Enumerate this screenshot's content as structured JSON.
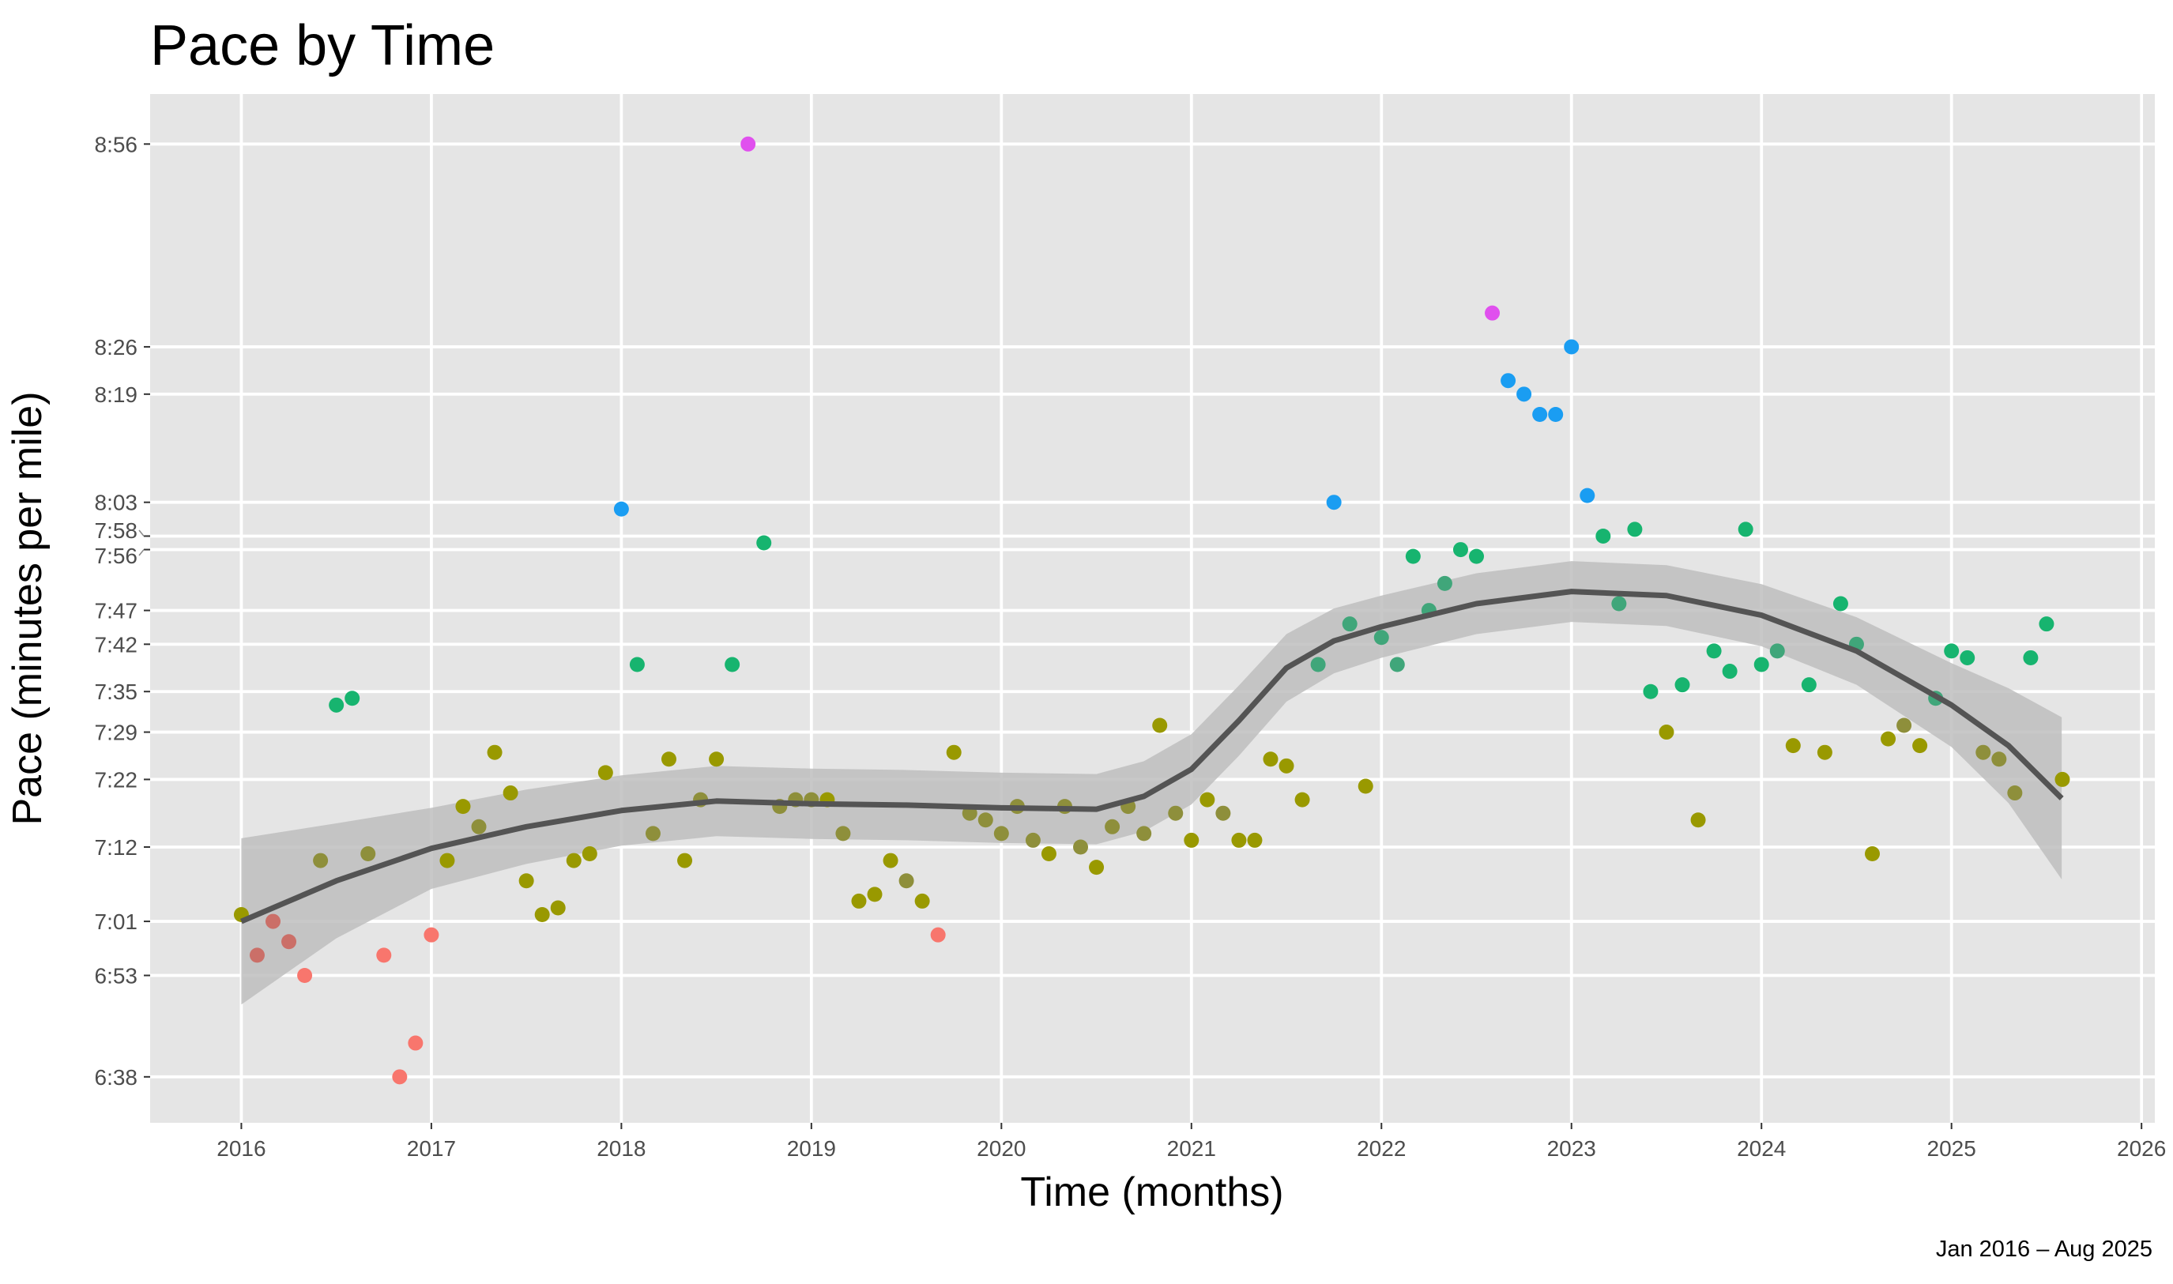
{
  "chart_data": {
    "type": "scatter",
    "title": "Pace by Time",
    "xlabel": "Time (months)",
    "ylabel": "Pace (minutes per mile)",
    "caption": "Jan 2016 – Aug 2025",
    "xlim": [
      2015.52,
      2026.07
    ],
    "ylim_seconds": [
      391.2,
      543.4
    ],
    "grid": true,
    "legend": "none",
    "x_ticks": [
      2016,
      2017,
      2018,
      2019,
      2020,
      2021,
      2022,
      2023,
      2024,
      2025,
      2026
    ],
    "y_ticks": [
      {
        "label": "8:56",
        "seconds": 536
      },
      {
        "label": "8:26",
        "seconds": 506
      },
      {
        "label": "8:19",
        "seconds": 499
      },
      {
        "label": "8:03",
        "seconds": 483
      },
      {
        "label": "7:58",
        "seconds": 478
      },
      {
        "label": "7:56",
        "seconds": 476
      },
      {
        "label": "7:47",
        "seconds": 467
      },
      {
        "label": "7:42",
        "seconds": 462
      },
      {
        "label": "7:35",
        "seconds": 455
      },
      {
        "label": "7:29",
        "seconds": 449
      },
      {
        "label": "7:22",
        "seconds": 442
      },
      {
        "label": "7:12",
        "seconds": 432
      },
      {
        "label": "7:01",
        "seconds": 421
      },
      {
        "label": "6:53",
        "seconds": 413
      },
      {
        "label": "6:38",
        "seconds": 398
      }
    ],
    "colors": {
      "r": "#F8766D",
      "rg": "#CB6F68",
      "o": "#999900",
      "og": "#8E8F3B",
      "g": "#17B46F",
      "gg": "#40A67A",
      "b": "#1A9DF2",
      "m": "#E050EE",
      "smooth": "#545454",
      "band": "#BEBEBE",
      "panel": "#E5E5E5",
      "grid": "#FFFFFF"
    },
    "points": [
      [
        "2016-01",
        422,
        "o"
      ],
      [
        "2016-02",
        416,
        "rg"
      ],
      [
        "2016-03",
        421,
        "rg"
      ],
      [
        "2016-04",
        418,
        "rg"
      ],
      [
        "2016-05",
        413,
        "r"
      ],
      [
        "2016-06",
        430,
        "og"
      ],
      [
        "2016-07",
        453,
        "g"
      ],
      [
        "2016-08",
        454,
        "g"
      ],
      [
        "2016-09",
        431,
        "og"
      ],
      [
        "2016-10",
        416,
        "r"
      ],
      [
        "2016-11",
        398,
        "r"
      ],
      [
        "2016-12",
        403,
        "r"
      ],
      [
        "2017-01",
        419,
        "r"
      ],
      [
        "2017-02",
        430,
        "o"
      ],
      [
        "2017-03",
        438,
        "o"
      ],
      [
        "2017-04",
        435,
        "og"
      ],
      [
        "2017-05",
        446,
        "o"
      ],
      [
        "2017-06",
        440,
        "o"
      ],
      [
        "2017-07",
        427,
        "o"
      ],
      [
        "2017-08",
        422,
        "o"
      ],
      [
        "2017-09",
        423,
        "o"
      ],
      [
        "2017-10",
        430,
        "o"
      ],
      [
        "2017-11",
        431,
        "o"
      ],
      [
        "2017-12",
        443,
        "o"
      ],
      [
        "2018-01",
        482,
        "b"
      ],
      [
        "2018-02",
        459,
        "g"
      ],
      [
        "2018-03",
        434,
        "og"
      ],
      [
        "2018-04",
        445,
        "o"
      ],
      [
        "2018-05",
        430,
        "o"
      ],
      [
        "2018-06",
        439,
        "og"
      ],
      [
        "2018-07",
        445,
        "o"
      ],
      [
        "2018-08",
        459,
        "g"
      ],
      [
        "2018-09",
        536,
        "m"
      ],
      [
        "2018-10",
        477,
        "g"
      ],
      [
        "2018-11",
        438,
        "og"
      ],
      [
        "2018-12",
        439,
        "og"
      ],
      [
        "2019-01",
        439,
        "og"
      ],
      [
        "2019-02",
        439,
        "o"
      ],
      [
        "2019-03",
        434,
        "og"
      ],
      [
        "2019-04",
        424,
        "o"
      ],
      [
        "2019-05",
        425,
        "o"
      ],
      [
        "2019-06",
        430,
        "o"
      ],
      [
        "2019-07",
        427,
        "og"
      ],
      [
        "2019-08",
        424,
        "o"
      ],
      [
        "2019-09",
        419,
        "r"
      ],
      [
        "2019-10",
        446,
        "o"
      ],
      [
        "2019-11",
        437,
        "og"
      ],
      [
        "2019-12",
        436,
        "og"
      ],
      [
        "2020-01",
        434,
        "og"
      ],
      [
        "2020-02",
        438,
        "og"
      ],
      [
        "2020-03",
        433,
        "og"
      ],
      [
        "2020-04",
        431,
        "o"
      ],
      [
        "2020-05",
        438,
        "og"
      ],
      [
        "2020-06",
        432,
        "og"
      ],
      [
        "2020-07",
        429,
        "o"
      ],
      [
        "2020-08",
        435,
        "og"
      ],
      [
        "2020-09",
        438,
        "og"
      ],
      [
        "2020-10",
        434,
        "og"
      ],
      [
        "2020-11",
        450,
        "o"
      ],
      [
        "2020-12",
        437,
        "og"
      ],
      [
        "2021-01",
        433,
        "o"
      ],
      [
        "2021-02",
        439,
        "o"
      ],
      [
        "2021-03",
        437,
        "og"
      ],
      [
        "2021-04",
        433,
        "o"
      ],
      [
        "2021-05",
        433,
        "o"
      ],
      [
        "2021-06",
        445,
        "o"
      ],
      [
        "2021-07",
        444,
        "o"
      ],
      [
        "2021-08",
        439,
        "o"
      ],
      [
        "2021-09",
        459,
        "gg"
      ],
      [
        "2021-10",
        483,
        "b"
      ],
      [
        "2021-11",
        465,
        "gg"
      ],
      [
        "2021-12",
        441,
        "o"
      ],
      [
        "2022-01",
        463,
        "gg"
      ],
      [
        "2022-02",
        459,
        "gg"
      ],
      [
        "2022-03",
        475,
        "g"
      ],
      [
        "2022-04",
        467,
        "gg"
      ],
      [
        "2022-05",
        471,
        "gg"
      ],
      [
        "2022-06",
        476,
        "g"
      ],
      [
        "2022-07",
        475,
        "g"
      ],
      [
        "2022-08",
        511,
        "m"
      ],
      [
        "2022-09",
        501,
        "b"
      ],
      [
        "2022-10",
        499,
        "b"
      ],
      [
        "2022-11",
        496,
        "b"
      ],
      [
        "2022-12",
        496,
        "b"
      ],
      [
        "2023-01",
        506,
        "b"
      ],
      [
        "2023-02",
        484,
        "b"
      ],
      [
        "2023-03",
        478,
        "g"
      ],
      [
        "2023-04",
        468,
        "gg"
      ],
      [
        "2023-05",
        479,
        "g"
      ],
      [
        "2023-06",
        455,
        "g"
      ],
      [
        "2023-07",
        449,
        "o"
      ],
      [
        "2023-08",
        456,
        "g"
      ],
      [
        "2023-09",
        436,
        "o"
      ],
      [
        "2023-10",
        461,
        "g"
      ],
      [
        "2023-11",
        458,
        "g"
      ],
      [
        "2023-12",
        479,
        "g"
      ],
      [
        "2024-01",
        459,
        "g"
      ],
      [
        "2024-02",
        461,
        "gg"
      ],
      [
        "2024-03",
        447,
        "o"
      ],
      [
        "2024-04",
        456,
        "g"
      ],
      [
        "2024-05",
        446,
        "o"
      ],
      [
        "2024-06",
        468,
        "g"
      ],
      [
        "2024-07",
        462,
        "gg"
      ],
      [
        "2024-08",
        431,
        "o"
      ],
      [
        "2024-09",
        448,
        "o"
      ],
      [
        "2024-10",
        450,
        "og"
      ],
      [
        "2024-11",
        447,
        "o"
      ],
      [
        "2024-12",
        454,
        "gg"
      ],
      [
        "2025-01",
        461,
        "g"
      ],
      [
        "2025-02",
        460,
        "g"
      ],
      [
        "2025-03",
        446,
        "og"
      ],
      [
        "2025-04",
        445,
        "og"
      ],
      [
        "2025-05",
        440,
        "og"
      ],
      [
        "2025-06",
        460,
        "g"
      ],
      [
        "2025-07",
        465,
        "g"
      ],
      [
        "2025-08",
        442,
        "o"
      ]
    ],
    "smooth": {
      "x": [
        2016.0,
        2016.5,
        2017.0,
        2017.5,
        2018.0,
        2018.5,
        2019.0,
        2019.5,
        2020.0,
        2020.5,
        2020.75,
        2021.0,
        2021.25,
        2021.5,
        2021.75,
        2022.0,
        2022.5,
        2023.0,
        2023.5,
        2024.0,
        2024.5,
        2025.0,
        2025.3,
        2025.58
      ],
      "y": [
        421,
        427,
        431.8,
        435,
        437.4,
        438.8,
        438.4,
        438.2,
        437.8,
        437.6,
        439.5,
        443.5,
        450.7,
        458.5,
        462.5,
        464.6,
        468,
        469.8,
        469.2,
        466.3,
        461,
        453,
        447,
        439.2
      ],
      "se": [
        12.3,
        8.5,
        6,
        5.5,
        5.2,
        5.2,
        5.2,
        5.2,
        5.2,
        5.2,
        5.2,
        5.2,
        5.2,
        5,
        4.8,
        4.6,
        4.5,
        4.5,
        4.5,
        4.6,
        5,
        6.2,
        8.5,
        12
      ]
    }
  }
}
